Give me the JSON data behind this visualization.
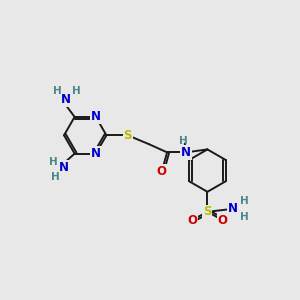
{
  "bg_color": "#e8e8e8",
  "bond_color": "#1a1a1a",
  "atom_colors": {
    "N": "#0000cc",
    "O": "#cc0000",
    "S": "#bbbb00",
    "H": "#4a8888",
    "C": "#1a1a1a"
  },
  "font_size_atom": 8.5,
  "font_size_H": 7.5
}
